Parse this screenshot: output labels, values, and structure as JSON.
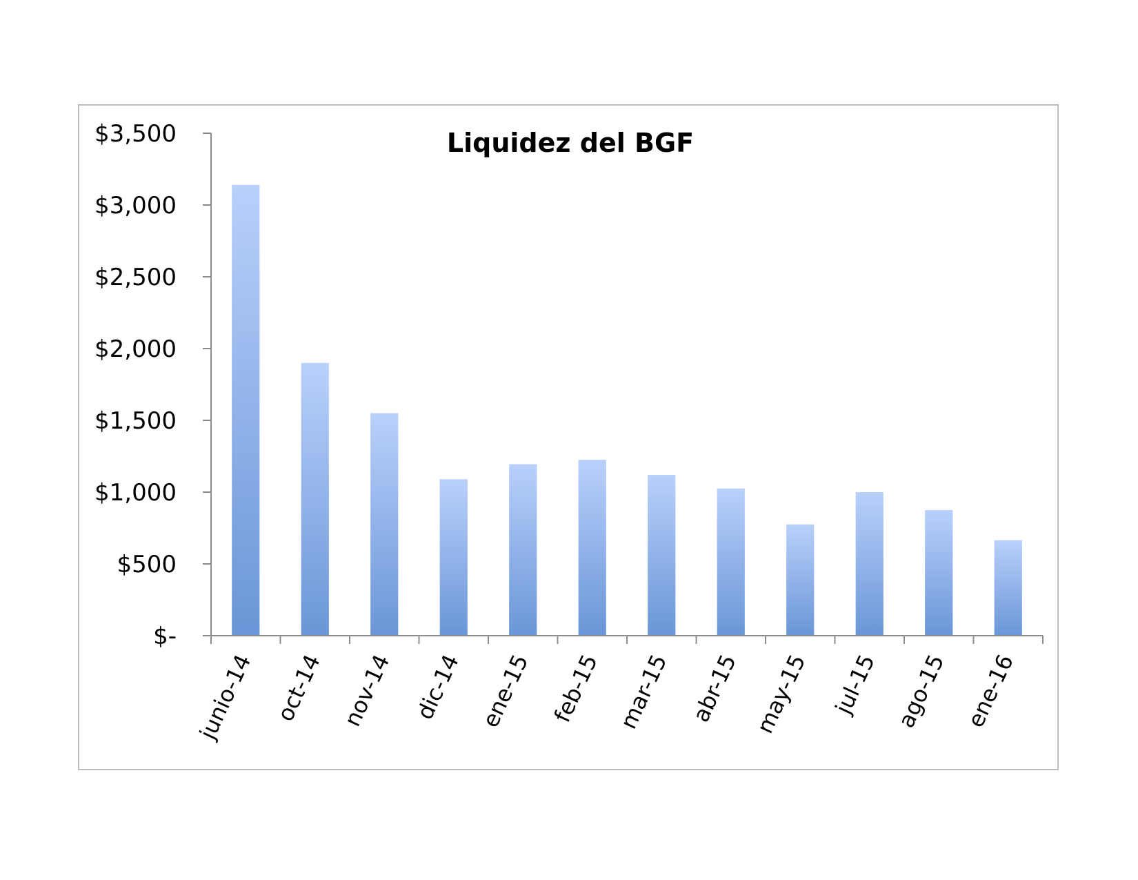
{
  "chart_data": {
    "type": "bar",
    "title": "Liquidez del BGF",
    "categories": [
      "junio-14",
      "oct-14",
      "nov-14",
      "dic-14",
      "ene-15",
      "feb-15",
      "mar-15",
      "abr-15",
      "may-15",
      "jul-15",
      "ago-15",
      "ene-16"
    ],
    "values": [
      3140,
      1900,
      1550,
      1090,
      1195,
      1225,
      1120,
      1025,
      775,
      1000,
      875,
      665
    ],
    "ylim": [
      0,
      3500
    ],
    "yticks": [
      0,
      500,
      1000,
      1500,
      2000,
      2500,
      3000,
      3500
    ],
    "ytick_labels": [
      "$-",
      "$500",
      "$1,000",
      "$1,500",
      "$2,000",
      "$2,500",
      "$3,000",
      "$3,500"
    ],
    "xlabel": "",
    "ylabel": "",
    "grid": false,
    "legend": "none",
    "bar_color_top": "#b9d0fb",
    "bar_color_bottom": "#6a96d7"
  }
}
